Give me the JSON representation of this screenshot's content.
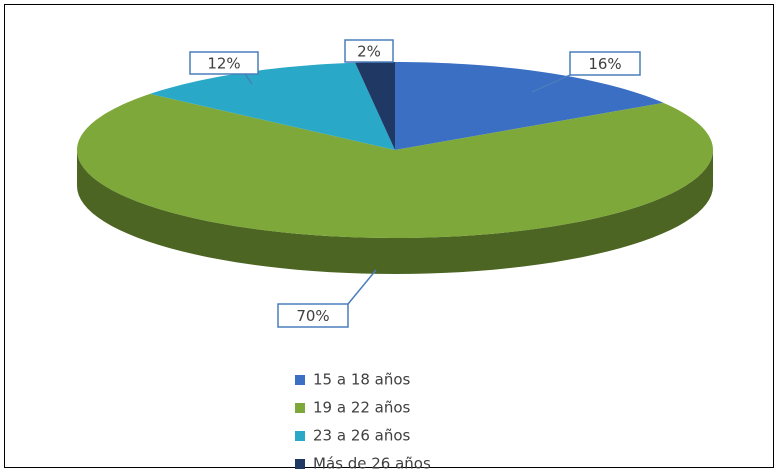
{
  "chart_data": {
    "type": "pie3d",
    "categories": [
      "15 a 18 años",
      "19 a 22 años",
      "23 a 26 años",
      "Más de 26 años"
    ],
    "values": [
      16,
      70,
      12,
      2
    ],
    "value_labels": [
      "16%",
      "70%",
      "12%",
      "2%"
    ],
    "colors": [
      "#3a6fc4",
      "#7ea83a",
      "#2aa8c8",
      "#1f3864"
    ],
    "legend": "bottom"
  }
}
